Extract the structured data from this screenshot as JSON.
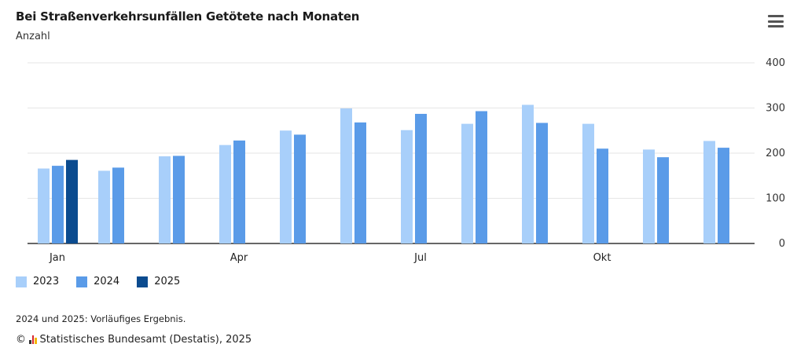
{
  "header": {
    "title": "Bei Straßenverkehrsunfällen Getötete nach Monaten",
    "subtitle": "Anzahl",
    "menu_icon": "hamburger-menu-icon"
  },
  "chart_data": {
    "type": "bar",
    "title": "Bei Straßenverkehrsunfällen Getötete nach Monaten",
    "ylabel": "Anzahl",
    "ylim": [
      0,
      400
    ],
    "yticks": [
      0,
      100,
      200,
      300,
      400
    ],
    "y_axis_side": "right",
    "grid": true,
    "legend": "bottom-left",
    "months": 12,
    "x_tick_labels": [
      {
        "month_index": 0,
        "label": "Jan"
      },
      {
        "month_index": 3,
        "label": "Apr"
      },
      {
        "month_index": 6,
        "label": "Jul"
      },
      {
        "month_index": 9,
        "label": "Okt"
      }
    ],
    "series": [
      {
        "name": "2023",
        "color": "#a8cffa",
        "values": [
          166,
          161,
          193,
          218,
          250,
          299,
          251,
          265,
          307,
          265,
          208,
          227
        ]
      },
      {
        "name": "2024",
        "color": "#5a9be8",
        "values": [
          172,
          168,
          194,
          228,
          241,
          268,
          287,
          293,
          267,
          210,
          191,
          212
        ]
      },
      {
        "name": "2025",
        "color": "#0b4b8f",
        "values": [
          185,
          null,
          null,
          null,
          null,
          null,
          null,
          null,
          null,
          null,
          null,
          null
        ]
      }
    ]
  },
  "footer": {
    "note": "2024 und 2025: Vorläufiges Ergebnis.",
    "copyright": "©",
    "source": "Statistisches Bundesamt (Destatis), 2025"
  }
}
